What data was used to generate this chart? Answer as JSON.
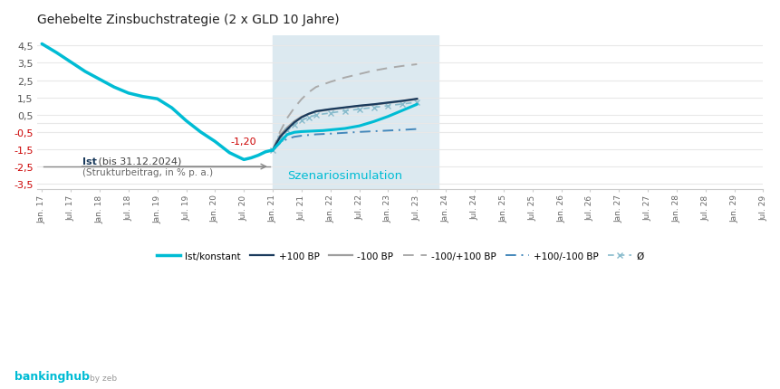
{
  "title": "Gehebelte Zinsbuchstrategie (2 x GLD 10 Jahre)",
  "background_color": "#ffffff",
  "scenario_bg_color": "#dce9f0",
  "yticks": [
    -3.5,
    -2.5,
    -1.5,
    -0.5,
    0.5,
    1.5,
    2.5,
    3.5,
    4.5
  ],
  "ytick_labels": [
    "-3,5",
    "-2,5",
    "-1,5",
    "-0,5",
    "0,5",
    "1,5",
    "2,5",
    "3,5",
    "4,5"
  ],
  "annotation_value": "-1,20",
  "annotation_color": "#cc0000",
  "ist_label_bold": "Ist",
  "ist_label_rest": " (bis 31.12.2024)",
  "ist_sublabel": "(Strukturbeitrag, in % p. a.)",
  "scenario_label": "Szenariosimulation",
  "legend_entries": [
    "Ist/konstant",
    "+100 BP",
    "-100 BP",
    "-100/+100 BP",
    "+100/-100 BP",
    "Ø"
  ],
  "ist_color": "#00bcd4",
  "plus100_color": "#1a3a5c",
  "minus100_color": "#9e9e9e",
  "minus100plus100_color": "#aaaaaa",
  "plus100minus100_color": "#4488bb",
  "avg_color": "#88bbcc",
  "grid_color": "#e8e8e8",
  "hist_ist_x": [
    0,
    1,
    2,
    3,
    4,
    5,
    6,
    7,
    8,
    9,
    10,
    11,
    12,
    13,
    14,
    14.5,
    15,
    15.5,
    16
  ],
  "hist_ist_y": [
    4.6,
    4.1,
    3.55,
    3.0,
    2.55,
    2.1,
    1.75,
    1.55,
    1.42,
    0.9,
    0.15,
    -0.5,
    -1.05,
    -1.7,
    -2.1,
    -2.0,
    -1.85,
    -1.65,
    -1.55
  ],
  "scen_ist_x": [
    16,
    16.5,
    17,
    17.5,
    18,
    18.5,
    19,
    19.5,
    20,
    21,
    22,
    23,
    24,
    25,
    26
  ],
  "scen_ist_y": [
    -1.55,
    -1.1,
    -0.65,
    -0.52,
    -0.48,
    -0.46,
    -0.44,
    -0.42,
    -0.38,
    -0.3,
    -0.15,
    0.1,
    0.4,
    0.75,
    1.1
  ],
  "scen_plus100_x": [
    16,
    16.5,
    17,
    17.5,
    18,
    18.5,
    19,
    20,
    21,
    22,
    23,
    24,
    25,
    26
  ],
  "scen_plus100_y": [
    -1.55,
    -0.8,
    -0.35,
    0.05,
    0.35,
    0.55,
    0.7,
    0.82,
    0.92,
    1.02,
    1.1,
    1.2,
    1.3,
    1.42
  ],
  "scen_minus100_x": [
    16,
    16.5,
    17,
    17.5,
    18,
    18.5,
    19,
    20,
    21,
    22,
    23,
    24,
    25,
    26
  ],
  "scen_minus100_y": [
    -1.55,
    -0.7,
    -0.25,
    0.12,
    0.38,
    0.55,
    0.68,
    0.8,
    0.9,
    1.0,
    1.08,
    1.18,
    1.28,
    1.4
  ],
  "scen_minus100plus100_x": [
    16,
    16.5,
    17,
    17.5,
    18,
    18.5,
    19,
    20,
    21,
    22,
    23,
    24,
    25,
    26
  ],
  "scen_minus100plus100_y": [
    -1.55,
    -0.5,
    0.3,
    0.9,
    1.4,
    1.8,
    2.1,
    2.4,
    2.65,
    2.85,
    3.05,
    3.2,
    3.32,
    3.42
  ],
  "scen_plus100minus100_x": [
    16,
    16.5,
    17,
    17.5,
    18,
    18.5,
    19,
    20,
    21,
    22,
    23,
    24,
    25,
    26
  ],
  "scen_plus100minus100_y": [
    -1.55,
    -1.15,
    -0.9,
    -0.78,
    -0.72,
    -0.68,
    -0.64,
    -0.6,
    -0.55,
    -0.5,
    -0.46,
    -0.42,
    -0.38,
    -0.33
  ],
  "scen_avg_x": [
    16,
    16.5,
    17,
    17.5,
    18,
    18.5,
    19,
    20,
    21,
    22,
    23,
    24,
    25,
    26
  ],
  "scen_avg_y": [
    -1.55,
    -0.85,
    -0.4,
    -0.08,
    0.18,
    0.35,
    0.48,
    0.6,
    0.72,
    0.82,
    0.92,
    1.02,
    1.12,
    1.22
  ],
  "x_tick_labels": [
    "Jan. 17",
    "Jul. 17",
    "Jan. 18",
    "Jul. 18",
    "Jan. 19",
    "Jul. 19",
    "Jan. 20",
    "Jul. 20",
    "Jan. 21",
    "Jul. 21",
    "Jan. 22",
    "Jul. 22",
    "Jan. 23",
    "Jul. 23",
    "Jan. 24",
    "Jul. 24",
    "Jan. 25",
    "Jul. 25",
    "Jan. 26",
    "Jul. 26",
    "Jan. 27",
    "Jul. 27",
    "Jan. 28",
    "Jul. 28",
    "Jan. 29",
    "Jul. 29"
  ],
  "scen_boundary_x": 16,
  "xlim_min": -0.3,
  "xlim_max": 26.5,
  "ylim_min": -3.8,
  "ylim_max": 5.1
}
